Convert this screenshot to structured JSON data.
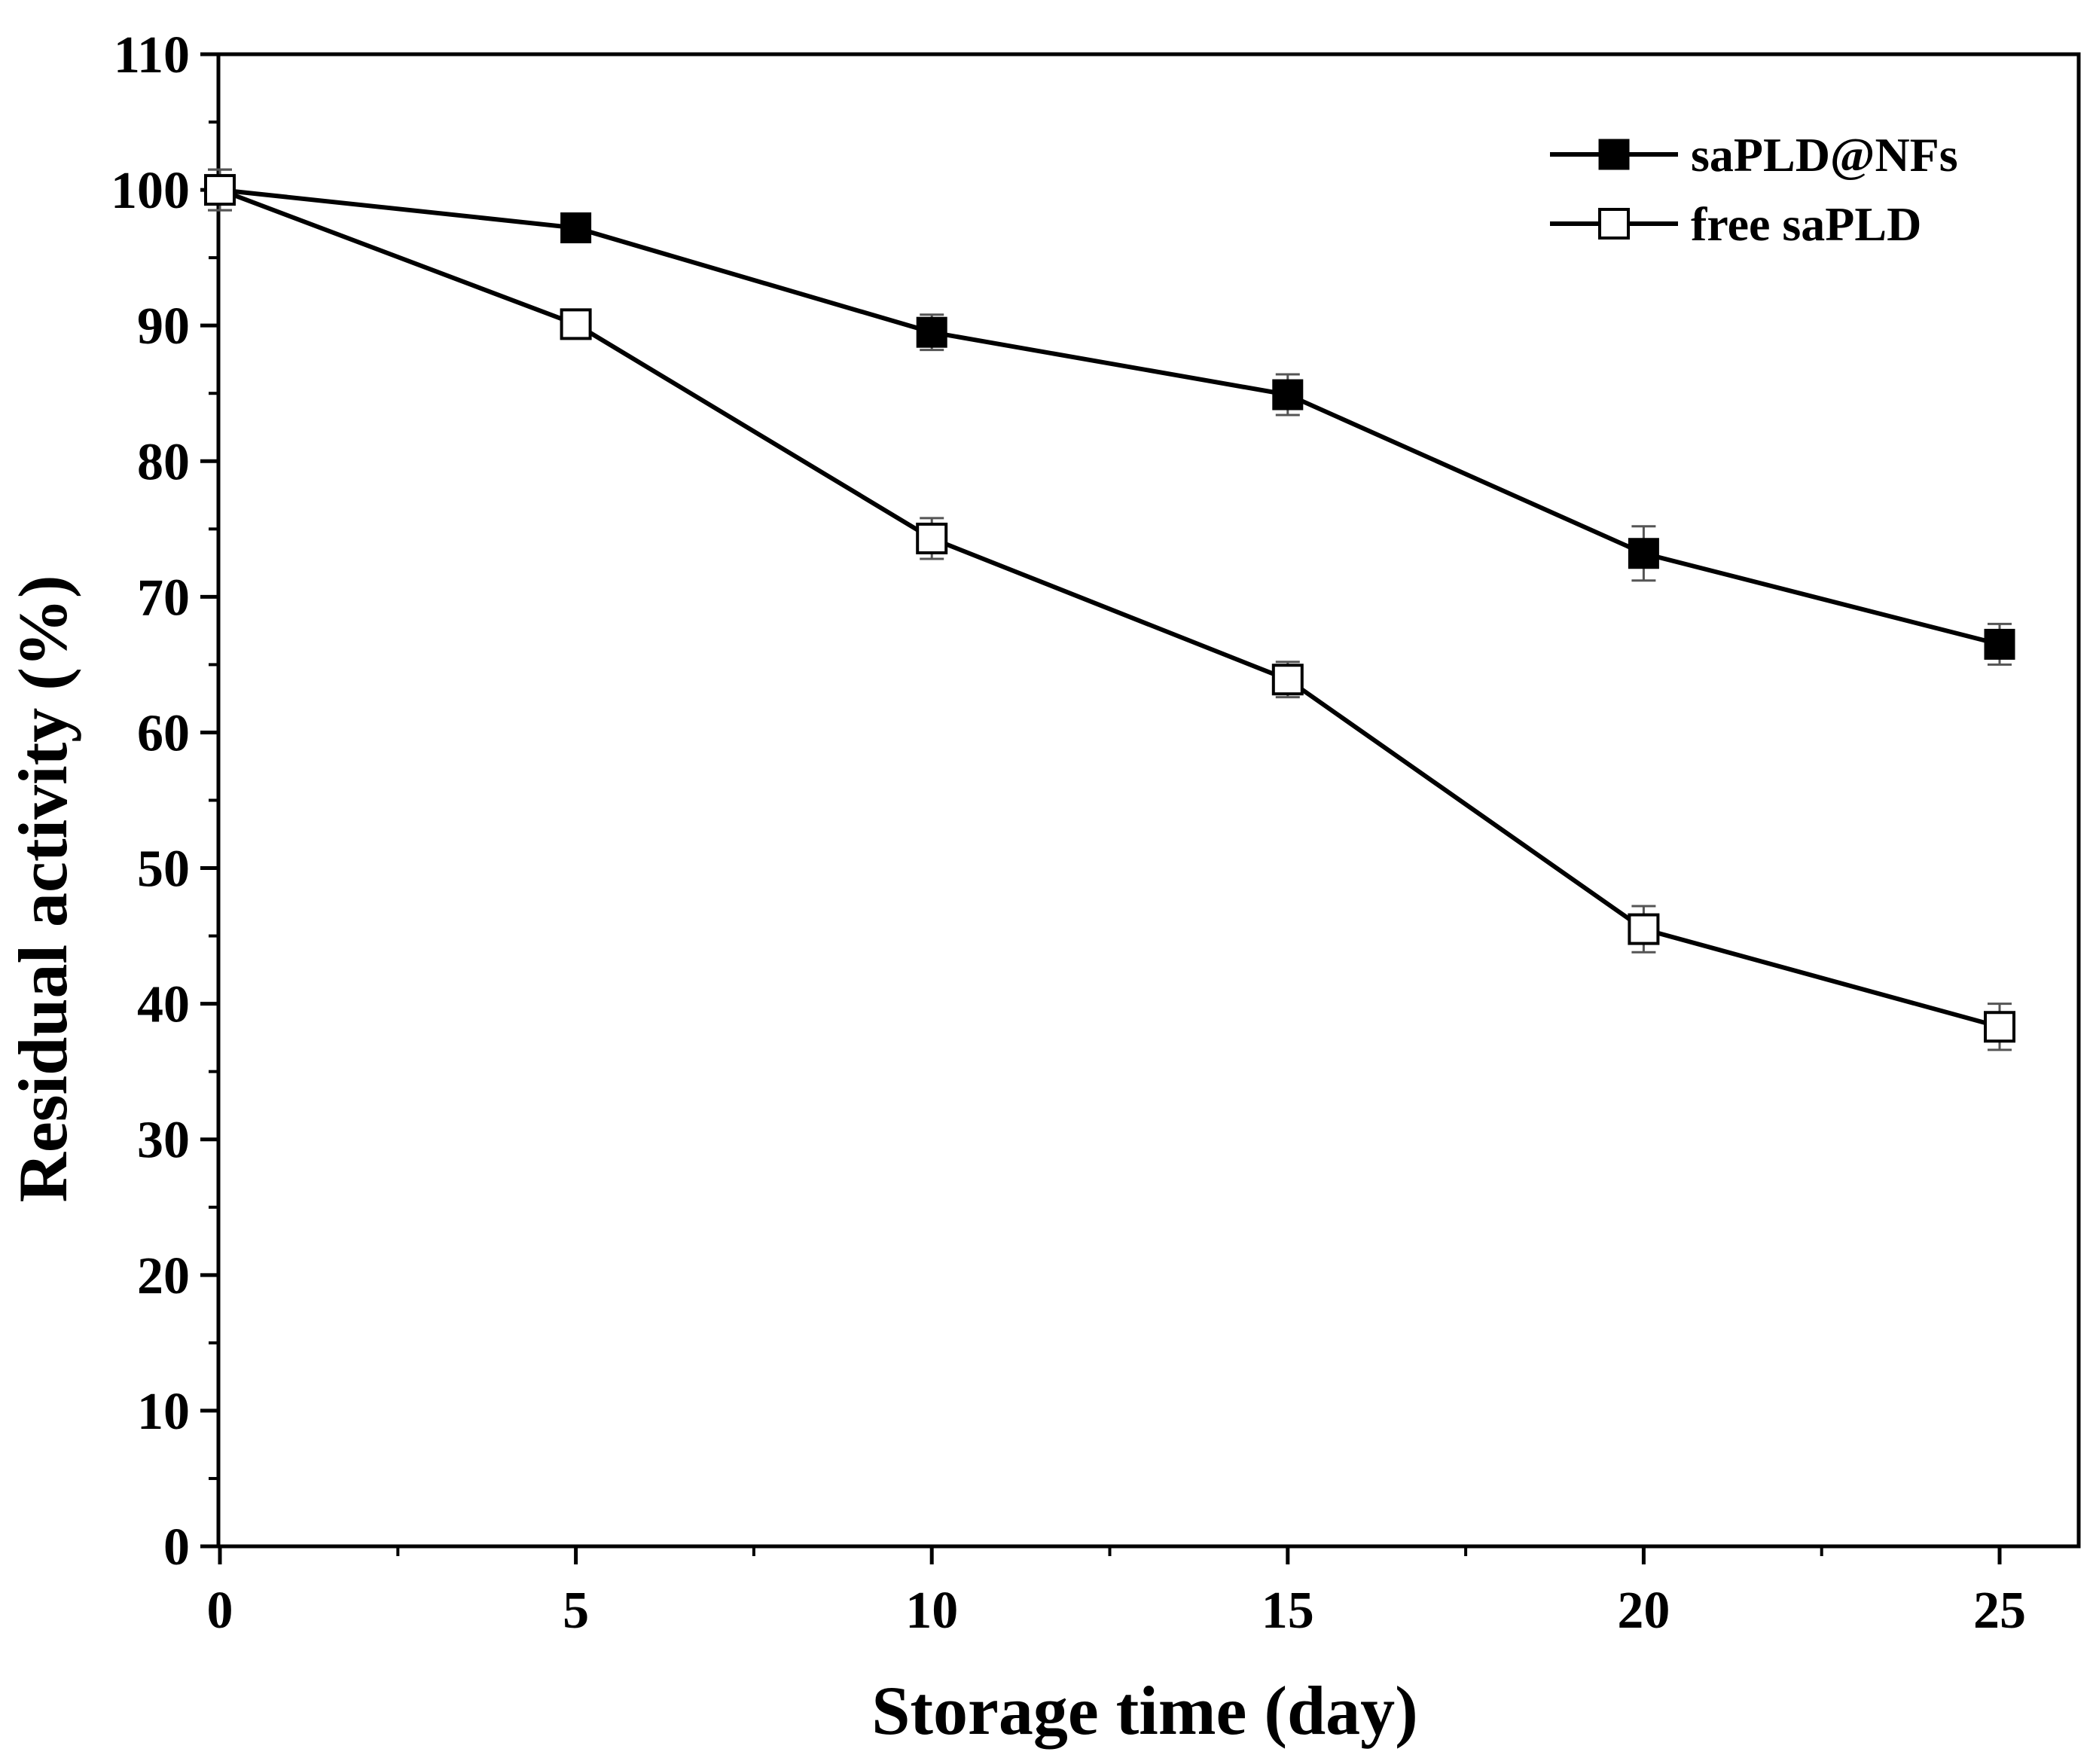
{
  "chart_data": {
    "type": "line",
    "xlabel": "Storage time (day)",
    "ylabel": "Residual activity (%)",
    "xlim": [
      0,
      25
    ],
    "ylim": [
      0,
      110
    ],
    "xticks": [
      "0",
      "5",
      "10",
      "15",
      "20",
      "25"
    ],
    "yticks": [
      "0",
      "10",
      "20",
      "30",
      "40",
      "50",
      "60",
      "70",
      "80",
      "90",
      "100",
      "110"
    ],
    "legend_position": "top-right",
    "grid": false,
    "series": [
      {
        "name": "saPLD@NFs",
        "marker": "filled-square",
        "color": "#000000",
        "x": [
          0,
          5,
          10,
          15,
          20,
          25
        ],
        "values": [
          100,
          97.2,
          89.5,
          84.9,
          73.2,
          66.5
        ],
        "errors": [
          1.5,
          0.8,
          1.3,
          1.5,
          2.0,
          1.5
        ]
      },
      {
        "name": "free saPLD",
        "marker": "open-square",
        "color": "#000000",
        "x": [
          0,
          5,
          10,
          15,
          20,
          25
        ],
        "values": [
          100,
          90.1,
          74.3,
          63.9,
          45.5,
          38.3
        ],
        "errors": [
          1.5,
          0.5,
          1.5,
          1.3,
          1.7,
          1.7
        ]
      }
    ]
  }
}
